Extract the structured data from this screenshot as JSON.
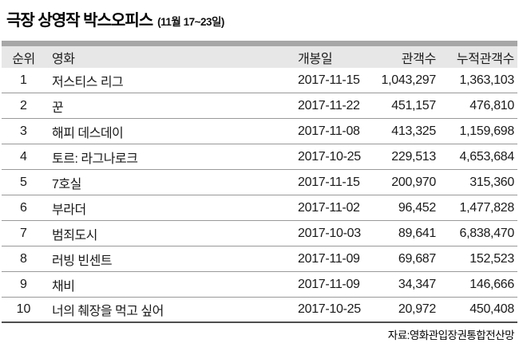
{
  "title": {
    "main": "극장 상영작 박스오피스",
    "period": "(11월 17~23일)"
  },
  "table": {
    "columns": [
      "순위",
      "영화",
      "개봉일",
      "관객수",
      "누적관객수"
    ],
    "rows": [
      {
        "rank": "1",
        "title": "저스티스 리그",
        "release": "2017-11-15",
        "audience": "1,043,297",
        "cumulative": "1,363,103"
      },
      {
        "rank": "2",
        "title": "꾼",
        "release": "2017-11-22",
        "audience": "451,157",
        "cumulative": "476,810"
      },
      {
        "rank": "3",
        "title": "해피 데스데이",
        "release": "2017-11-08",
        "audience": "413,325",
        "cumulative": "1,159,698"
      },
      {
        "rank": "4",
        "title": "토르: 라그나로크",
        "release": "2017-10-25",
        "audience": "229,513",
        "cumulative": "4,653,684"
      },
      {
        "rank": "5",
        "title": "7호실",
        "release": "2017-11-15",
        "audience": "200,970",
        "cumulative": "315,360"
      },
      {
        "rank": "6",
        "title": "부라더",
        "release": "2017-11-02",
        "audience": "96,452",
        "cumulative": "1,477,828"
      },
      {
        "rank": "7",
        "title": "범죄도시",
        "release": "2017-10-03",
        "audience": "89,641",
        "cumulative": "6,838,470"
      },
      {
        "rank": "8",
        "title": "러빙 빈센트",
        "release": "2017-11-09",
        "audience": "69,687",
        "cumulative": "152,523"
      },
      {
        "rank": "9",
        "title": "채비",
        "release": "2017-11-09",
        "audience": "34,347",
        "cumulative": "146,666"
      },
      {
        "rank": "10",
        "title": "너의 췌장을 먹고 싶어",
        "release": "2017-10-25",
        "audience": "20,972",
        "cumulative": "450,408"
      }
    ],
    "source": "자료:영화관입장권통합전산망"
  },
  "colors": {
    "top_bar": "#a7a7a7",
    "header_bg": "#e7e7e7",
    "row_rule": "#999999",
    "bottom_rule": "#4e4e4e",
    "text": "#1a1a1a"
  },
  "chart_data": {
    "type": "table",
    "title": "극장 상영작 박스오피스 (11월 17~23일)",
    "columns": [
      "순위",
      "영화",
      "개봉일",
      "관객수",
      "누적관객수"
    ],
    "rows": [
      [
        "1",
        "저스티스 리그",
        "2017-11-15",
        1043297,
        1363103
      ],
      [
        "2",
        "꾼",
        "2017-11-22",
        451157,
        476810
      ],
      [
        "3",
        "해피 데스데이",
        "2017-11-08",
        413325,
        1159698
      ],
      [
        "4",
        "토르: 라그나로크",
        "2017-10-25",
        229513,
        4653684
      ],
      [
        "5",
        "7호실",
        "2017-11-15",
        200970,
        315360
      ],
      [
        "6",
        "부라더",
        "2017-11-02",
        96452,
        1477828
      ],
      [
        "7",
        "범죄도시",
        "2017-10-03",
        89641,
        6838470
      ],
      [
        "8",
        "러빙 빈센트",
        "2017-11-09",
        69687,
        152523
      ],
      [
        "9",
        "채비",
        "2017-11-09",
        34347,
        146666
      ],
      [
        "10",
        "너의 췌장을 먹고 싶어",
        "2017-10-25",
        20972,
        450408
      ]
    ],
    "source": "자료:영화관입장권통합전산망"
  }
}
